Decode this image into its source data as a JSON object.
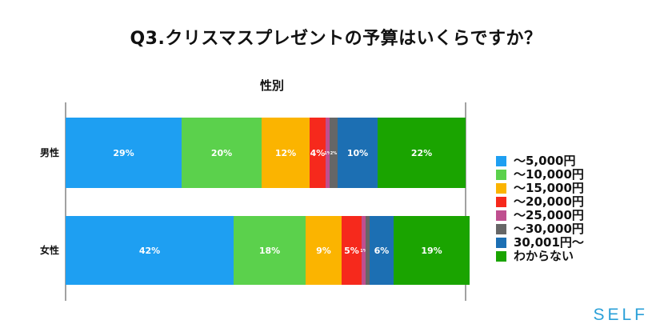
{
  "header": {
    "title": "Q3.クリスマスプレゼントの予算はいくらですか？"
  },
  "brand": {
    "logo_text": "SELF"
  },
  "chart_data": {
    "type": "bar",
    "orientation": "horizontal",
    "stacked": true,
    "title": "性別",
    "categories": [
      "男性",
      "女性"
    ],
    "series": [
      {
        "name": "〜5,000円",
        "values": [
          29,
          42
        ],
        "labels": [
          "29%",
          "42%"
        ],
        "color": "#1e9ff2"
      },
      {
        "name": "〜10,000円",
        "values": [
          20,
          18
        ],
        "labels": [
          "20%",
          "18%"
        ],
        "color": "#5bd14c"
      },
      {
        "name": "〜15,000円",
        "values": [
          12,
          9
        ],
        "labels": [
          "12%",
          "9%"
        ],
        "color": "#fbb400"
      },
      {
        "name": "〜20,000円",
        "values": [
          4,
          5
        ],
        "labels": [
          "4%",
          "5%"
        ],
        "color": "#f6291c"
      },
      {
        "name": "〜25,000円",
        "values": [
          1,
          1
        ],
        "labels": [
          "1%",
          "1%"
        ],
        "color": "#bf4f8f"
      },
      {
        "name": "〜30,000円",
        "values": [
          2,
          1
        ],
        "labels": [
          "2%",
          ""
        ],
        "color": "#666666"
      },
      {
        "name": "30,001円〜",
        "values": [
          10,
          6
        ],
        "labels": [
          "10%",
          "6%"
        ],
        "color": "#1c6fb3"
      },
      {
        "name": "わからない",
        "values": [
          22,
          19
        ],
        "labels": [
          "22%",
          "19%"
        ],
        "color": "#1aa400"
      }
    ],
    "xlim": [
      0,
      100
    ],
    "grid": false,
    "legend": "right"
  }
}
